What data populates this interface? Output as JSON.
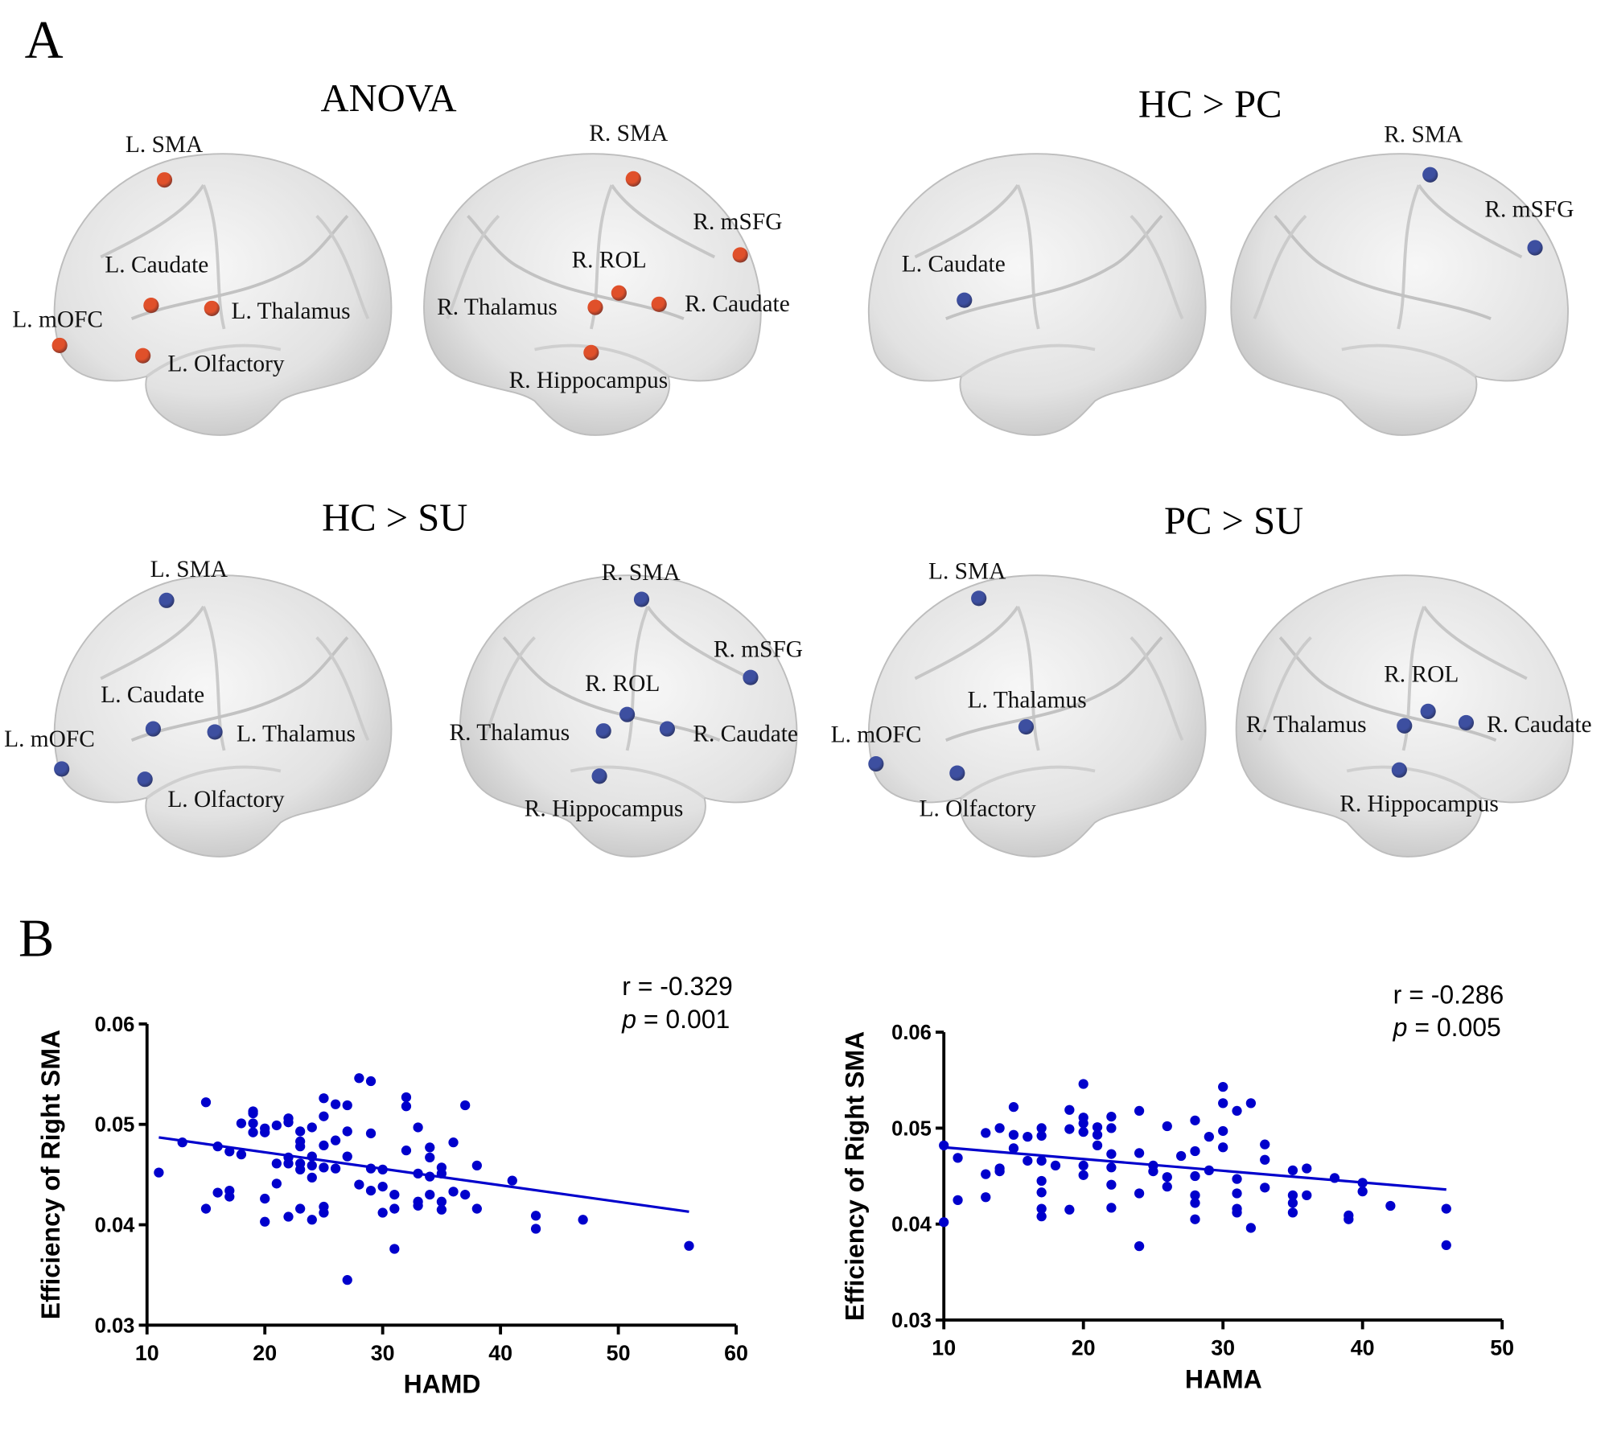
{
  "figure": {
    "panel_a_letter": "A",
    "panel_b_letter": "B"
  },
  "colors": {
    "anova_node": "#e0502a",
    "contrast_node": "#3d4fa0",
    "scatter": "#0000cc",
    "brain": "#e6e6e6"
  },
  "panels": [
    {
      "title": "ANOVA",
      "node_color": "anova",
      "views": [
        {
          "regions": [
            "L. SMA",
            "L. Caudate",
            "L. Thalamus",
            "L. mOFC",
            "L. Olfactory"
          ]
        },
        {
          "regions": [
            "R. SMA",
            "R. mSFG",
            "R. ROL",
            "R. Thalamus",
            "R. Caudate",
            "R. Hippocampus"
          ]
        }
      ]
    },
    {
      "title": "HC > PC",
      "node_color": "contrast",
      "views": [
        {
          "regions": [
            "L. Caudate"
          ]
        },
        {
          "regions": [
            "R. SMA",
            "R. mSFG"
          ]
        }
      ]
    },
    {
      "title": "HC > SU",
      "node_color": "contrast",
      "views": [
        {
          "regions": [
            "L. SMA",
            "L. Caudate",
            "L. Thalamus",
            "L. mOFC",
            "L. Olfactory"
          ]
        },
        {
          "regions": [
            "R. SMA",
            "R. mSFG",
            "R. ROL",
            "R. Thalamus",
            "R. Caudate",
            "R. Hippocampus"
          ]
        }
      ]
    },
    {
      "title": "PC > SU",
      "node_color": "contrast",
      "views": [
        {
          "regions": [
            "L. SMA",
            "L. Thalamus",
            "L. mOFC",
            "L. Olfactory"
          ]
        },
        {
          "regions": [
            "R. ROL",
            "R. Thalamus",
            "R. Caudate",
            "R. Hippocampus"
          ]
        }
      ]
    }
  ],
  "chart_data": [
    {
      "type": "scatter",
      "xlabel": "HAMD",
      "ylabel": "Efficiency of Right SMA",
      "xlim": [
        10,
        60
      ],
      "ylim": [
        0.03,
        0.06
      ],
      "xticks": [
        "10",
        "20",
        "30",
        "40",
        "50",
        "60"
      ],
      "yticks": [
        "0.03",
        "0.04",
        "0.05",
        "0.06"
      ],
      "grid": false,
      "annotation": {
        "r": "r = -0.329",
        "p_symbol": "p",
        "p": " = 0.001"
      },
      "fit_line": [
        [
          11,
          0.0487
        ],
        [
          56,
          0.0413
        ]
      ],
      "points": [
        [
          11,
          0.0452
        ],
        [
          13,
          0.0482
        ],
        [
          15,
          0.0522
        ],
        [
          15,
          0.0416
        ],
        [
          16,
          0.0478
        ],
        [
          16,
          0.0432
        ],
        [
          17,
          0.0473
        ],
        [
          17,
          0.0434
        ],
        [
          17,
          0.0428
        ],
        [
          18,
          0.0501
        ],
        [
          18,
          0.047
        ],
        [
          19,
          0.0513
        ],
        [
          19,
          0.0511
        ],
        [
          19,
          0.0501
        ],
        [
          19,
          0.0492
        ],
        [
          20,
          0.0496
        ],
        [
          20,
          0.0492
        ],
        [
          20,
          0.0426
        ],
        [
          20,
          0.0403
        ],
        [
          21,
          0.0499
        ],
        [
          21,
          0.0461
        ],
        [
          21,
          0.0441
        ],
        [
          22,
          0.0506
        ],
        [
          22,
          0.0502
        ],
        [
          22,
          0.0467
        ],
        [
          22,
          0.0461
        ],
        [
          22,
          0.0408
        ],
        [
          23,
          0.0493
        ],
        [
          23,
          0.0483
        ],
        [
          23,
          0.0478
        ],
        [
          23,
          0.0461
        ],
        [
          23,
          0.0455
        ],
        [
          23,
          0.0416
        ],
        [
          24,
          0.0497
        ],
        [
          24,
          0.0468
        ],
        [
          24,
          0.0459
        ],
        [
          24,
          0.0447
        ],
        [
          24,
          0.0405
        ],
        [
          25,
          0.0526
        ],
        [
          25,
          0.0508
        ],
        [
          25,
          0.0479
        ],
        [
          25,
          0.0457
        ],
        [
          25,
          0.0418
        ],
        [
          25,
          0.0412
        ],
        [
          26,
          0.052
        ],
        [
          26,
          0.0484
        ],
        [
          26,
          0.0456
        ],
        [
          27,
          0.0519
        ],
        [
          27,
          0.0493
        ],
        [
          27,
          0.0468
        ],
        [
          27,
          0.0345
        ],
        [
          28,
          0.0546
        ],
        [
          28,
          0.044
        ],
        [
          29,
          0.0543
        ],
        [
          29,
          0.0491
        ],
        [
          29,
          0.0456
        ],
        [
          29,
          0.0434
        ],
        [
          30,
          0.0455
        ],
        [
          30,
          0.0438
        ],
        [
          30,
          0.0412
        ],
        [
          31,
          0.043
        ],
        [
          31,
          0.0416
        ],
        [
          31,
          0.0376
        ],
        [
          32,
          0.0527
        ],
        [
          32,
          0.0518
        ],
        [
          32,
          0.0474
        ],
        [
          33,
          0.0497
        ],
        [
          33,
          0.0451
        ],
        [
          33,
          0.0423
        ],
        [
          33,
          0.0419
        ],
        [
          34,
          0.0477
        ],
        [
          34,
          0.0467
        ],
        [
          34,
          0.0448
        ],
        [
          34,
          0.043
        ],
        [
          35,
          0.0457
        ],
        [
          35,
          0.0451
        ],
        [
          35,
          0.0423
        ],
        [
          35,
          0.0415
        ],
        [
          36,
          0.0482
        ],
        [
          36,
          0.0433
        ],
        [
          37,
          0.0519
        ],
        [
          37,
          0.043
        ],
        [
          38,
          0.0459
        ],
        [
          38,
          0.0416
        ],
        [
          41,
          0.0444
        ],
        [
          43,
          0.0409
        ],
        [
          43,
          0.0396
        ],
        [
          47,
          0.0405
        ],
        [
          56,
          0.0379
        ]
      ]
    },
    {
      "type": "scatter",
      "xlabel": "HAMA",
      "ylabel": "Efficiency of Right SMA",
      "xlim": [
        10,
        50
      ],
      "ylim": [
        0.03,
        0.06
      ],
      "xticks": [
        "10",
        "20",
        "30",
        "40",
        "50"
      ],
      "yticks": [
        "0.03",
        "0.04",
        "0.05",
        "0.06"
      ],
      "grid": false,
      "annotation": {
        "r": "r = -0.286",
        "p_symbol": "p",
        "p": " = 0.005"
      },
      "fit_line": [
        [
          10,
          0.048
        ],
        [
          46,
          0.0436
        ]
      ],
      "points": [
        [
          10,
          0.0482
        ],
        [
          10,
          0.0402
        ],
        [
          11,
          0.0469
        ],
        [
          11,
          0.0425
        ],
        [
          13,
          0.0495
        ],
        [
          13,
          0.0452
        ],
        [
          13,
          0.0428
        ],
        [
          14,
          0.05
        ],
        [
          14,
          0.0458
        ],
        [
          14,
          0.0455
        ],
        [
          15,
          0.0522
        ],
        [
          15,
          0.0493
        ],
        [
          15,
          0.0479
        ],
        [
          16,
          0.0491
        ],
        [
          16,
          0.0466
        ],
        [
          17,
          0.05
        ],
        [
          17,
          0.0492
        ],
        [
          17,
          0.0466
        ],
        [
          17,
          0.0445
        ],
        [
          17,
          0.0433
        ],
        [
          17,
          0.0416
        ],
        [
          17,
          0.0408
        ],
        [
          18,
          0.0461
        ],
        [
          19,
          0.0519
        ],
        [
          19,
          0.0499
        ],
        [
          19,
          0.0415
        ],
        [
          20,
          0.0546
        ],
        [
          20,
          0.0511
        ],
        [
          20,
          0.0505
        ],
        [
          20,
          0.0496
        ],
        [
          20,
          0.0461
        ],
        [
          20,
          0.0451
        ],
        [
          21,
          0.0501
        ],
        [
          21,
          0.0493
        ],
        [
          21,
          0.0482
        ],
        [
          22,
          0.0512
        ],
        [
          22,
          0.05
        ],
        [
          22,
          0.0473
        ],
        [
          22,
          0.0459
        ],
        [
          22,
          0.0441
        ],
        [
          22,
          0.0417
        ],
        [
          24,
          0.0518
        ],
        [
          24,
          0.0474
        ],
        [
          24,
          0.0432
        ],
        [
          24,
          0.0377
        ],
        [
          25,
          0.0461
        ],
        [
          25,
          0.0455
        ],
        [
          26,
          0.0502
        ],
        [
          26,
          0.0449
        ],
        [
          26,
          0.0439
        ],
        [
          27,
          0.0471
        ],
        [
          28,
          0.0508
        ],
        [
          28,
          0.0476
        ],
        [
          28,
          0.045
        ],
        [
          28,
          0.043
        ],
        [
          28,
          0.0422
        ],
        [
          28,
          0.0405
        ],
        [
          29,
          0.0491
        ],
        [
          29,
          0.0456
        ],
        [
          30,
          0.0543
        ],
        [
          30,
          0.0526
        ],
        [
          30,
          0.0497
        ],
        [
          30,
          0.048
        ],
        [
          31,
          0.0518
        ],
        [
          31,
          0.0447
        ],
        [
          31,
          0.0432
        ],
        [
          31,
          0.0416
        ],
        [
          31,
          0.0412
        ],
        [
          32,
          0.0526
        ],
        [
          32,
          0.0396
        ],
        [
          33,
          0.0483
        ],
        [
          33,
          0.0467
        ],
        [
          33,
          0.0438
        ],
        [
          35,
          0.0456
        ],
        [
          35,
          0.043
        ],
        [
          35,
          0.0422
        ],
        [
          35,
          0.0412
        ],
        [
          36,
          0.0458
        ],
        [
          36,
          0.043
        ],
        [
          38,
          0.0448
        ],
        [
          39,
          0.0409
        ],
        [
          39,
          0.0405
        ],
        [
          40,
          0.0443
        ],
        [
          40,
          0.0434
        ],
        [
          42,
          0.0419
        ],
        [
          46,
          0.0416
        ],
        [
          46,
          0.0378
        ]
      ]
    }
  ]
}
